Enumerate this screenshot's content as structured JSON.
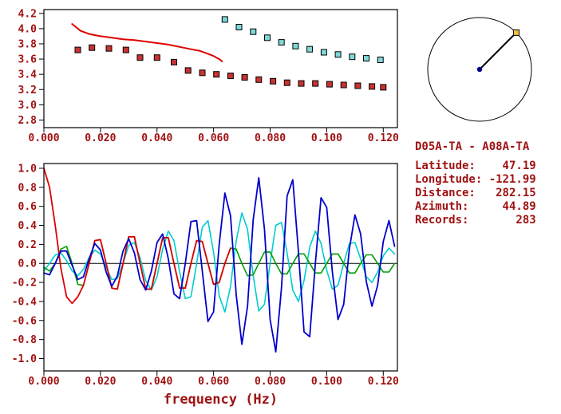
{
  "colors": {
    "text": "#a01212",
    "frame": "#000000",
    "dial_line": "#000000",
    "dial_center_dot": "#00008b",
    "dial_marker_fill": "#f0c040",
    "dial_marker_stroke": "#000000"
  },
  "panel": {
    "station_pair": "D05A-TA - A08A-TA",
    "fields": [
      {
        "label": "Latitude:",
        "value": "47.19"
      },
      {
        "label": "Longitude:",
        "value": "-121.99"
      },
      {
        "label": "Distance:",
        "value": "282.15"
      },
      {
        "label": "Azimuth:",
        "value": "44.89"
      },
      {
        "label": "Records:",
        "value": "283"
      }
    ]
  },
  "azimuth_dial": {
    "azimuth_deg": 44.89
  },
  "chart_data": [
    {
      "id": "dispersion",
      "type": "scatter",
      "title": "",
      "xlabel": "",
      "ylabel": "",
      "xlim": [
        0,
        0.125
      ],
      "ylim": [
        2.7,
        4.25
      ],
      "grid": false,
      "xticks": {
        "values": [
          0,
          0.02,
          0.04,
          0.06,
          0.08,
          0.1,
          0.12
        ],
        "labels": [
          "0.000",
          "0.020",
          "0.040",
          "0.060",
          "0.080",
          "0.100",
          "0.120"
        ]
      },
      "yticks": {
        "values": [
          2.8,
          3.0,
          3.2,
          3.4,
          3.6,
          3.8,
          4.0,
          4.2
        ],
        "labels": [
          "2.8",
          "3.0",
          "3.2",
          "3.4",
          "3.6",
          "3.8",
          "4.0",
          "4.2"
        ]
      },
      "series": [
        {
          "name": "red-squares",
          "kind": "scatter",
          "marker": "square",
          "color": "#c83232",
          "points": [
            [
              0.012,
              3.72
            ],
            [
              0.017,
              3.75
            ],
            [
              0.023,
              3.74
            ],
            [
              0.029,
              3.72
            ],
            [
              0.034,
              3.62
            ],
            [
              0.04,
              3.62
            ],
            [
              0.046,
              3.56
            ],
            [
              0.051,
              3.45
            ],
            [
              0.056,
              3.42
            ],
            [
              0.061,
              3.4
            ],
            [
              0.066,
              3.38
            ],
            [
              0.071,
              3.36
            ],
            [
              0.076,
              3.33
            ],
            [
              0.081,
              3.31
            ],
            [
              0.086,
              3.29
            ],
            [
              0.091,
              3.28
            ],
            [
              0.096,
              3.28
            ],
            [
              0.101,
              3.27
            ],
            [
              0.106,
              3.26
            ],
            [
              0.111,
              3.25
            ],
            [
              0.116,
              3.24
            ],
            [
              0.12,
              3.23
            ]
          ]
        },
        {
          "name": "cyan-squares",
          "kind": "scatter",
          "marker": "square",
          "color": "#7fd8d8",
          "points": [
            [
              0.064,
              4.12
            ],
            [
              0.069,
              4.02
            ],
            [
              0.074,
              3.96
            ],
            [
              0.079,
              3.88
            ],
            [
              0.084,
              3.82
            ],
            [
              0.089,
              3.77
            ],
            [
              0.094,
              3.73
            ],
            [
              0.099,
              3.69
            ],
            [
              0.104,
              3.66
            ],
            [
              0.109,
              3.63
            ],
            [
              0.114,
              3.61
            ],
            [
              0.119,
              3.59
            ]
          ]
        },
        {
          "name": "red-curve",
          "kind": "line",
          "color": "#e00000",
          "width": 2,
          "points": [
            [
              0.01,
              4.06
            ],
            [
              0.013,
              3.97
            ],
            [
              0.016,
              3.93
            ],
            [
              0.02,
              3.9
            ],
            [
              0.024,
              3.88
            ],
            [
              0.028,
              3.86
            ],
            [
              0.032,
              3.85
            ],
            [
              0.036,
              3.83
            ],
            [
              0.04,
              3.81
            ],
            [
              0.044,
              3.79
            ],
            [
              0.048,
              3.76
            ],
            [
              0.052,
              3.73
            ],
            [
              0.055,
              3.71
            ],
            [
              0.058,
              3.67
            ],
            [
              0.06,
              3.64
            ],
            [
              0.062,
              3.6
            ],
            [
              0.063,
              3.57
            ]
          ]
        }
      ]
    },
    {
      "id": "waveforms",
      "type": "line",
      "title": "",
      "xlabel": "frequency (Hz)",
      "ylabel": "",
      "xlim": [
        0,
        0.125
      ],
      "ylim": [
        -1.13,
        1.05
      ],
      "grid": false,
      "zero_line": true,
      "xticks": {
        "values": [
          0,
          0.02,
          0.04,
          0.06,
          0.08,
          0.1,
          0.12
        ],
        "labels": [
          "0.000",
          "0.020",
          "0.040",
          "0.060",
          "0.080",
          "0.100",
          "0.120"
        ]
      },
      "yticks": {
        "values": [
          1.0,
          0.8,
          0.6,
          0.4,
          0.2,
          0.0,
          -0.2,
          -0.4,
          -0.6,
          -0.8,
          -1.0
        ],
        "labels": [
          "1.0",
          "0.8",
          "0.6",
          "0.4",
          "0.2",
          "0.0",
          "-0.2",
          "-0.4",
          "-0.6",
          "-0.8",
          "-1.0"
        ]
      },
      "series": [
        {
          "name": "cyan-wave",
          "kind": "sampled",
          "color": "#00cdcd",
          "width": 1.6,
          "x0": 0,
          "dx": 0.002,
          "values": [
            -0.08,
            0.0,
            0.09,
            0.11,
            0.03,
            -0.08,
            -0.13,
            -0.06,
            0.06,
            0.14,
            0.1,
            -0.04,
            -0.17,
            -0.16,
            0.0,
            0.19,
            0.22,
            0.06,
            -0.18,
            -0.28,
            -0.14,
            0.15,
            0.34,
            0.24,
            -0.09,
            -0.37,
            -0.35,
            0.0,
            0.38,
            0.45,
            0.12,
            -0.34,
            -0.51,
            -0.24,
            0.24,
            0.53,
            0.36,
            -0.13,
            -0.5,
            -0.43,
            0.0,
            0.4,
            0.43,
            0.11,
            -0.28,
            -0.4,
            -0.18,
            0.17,
            0.34,
            0.21,
            -0.07,
            -0.27,
            -0.23,
            0.0,
            0.21,
            0.22,
            0.05,
            -0.14,
            -0.2,
            -0.09,
            0.08,
            0.16,
            0.1
          ]
        },
        {
          "name": "green-wave",
          "kind": "sampled",
          "color": "#00a000",
          "width": 1.6,
          "x0": 0,
          "dx": 0.002,
          "values": [
            -0.04,
            -0.08,
            0.0,
            0.15,
            0.18,
            0.0,
            -0.22,
            -0.23,
            0.0,
            0.24,
            0.25,
            0.0,
            -0.26,
            -0.27,
            0.0,
            0.28,
            0.28,
            0.0,
            -0.27,
            -0.27,
            0.0,
            0.27,
            0.27,
            0.0,
            -0.26,
            -0.26,
            0.0,
            0.24,
            0.23,
            0.0,
            -0.22,
            -0.2,
            0.0,
            0.16,
            0.15,
            0.0,
            -0.13,
            -0.12,
            0.0,
            0.12,
            0.12,
            0.0,
            -0.11,
            -0.11,
            0.0,
            0.1,
            0.1,
            0.0,
            -0.1,
            -0.1,
            0.0,
            0.1,
            0.1,
            0.0,
            -0.1,
            -0.1,
            0.0,
            0.09,
            0.09,
            0.0,
            -0.09,
            -0.09,
            0.0
          ]
        },
        {
          "name": "red-wave",
          "kind": "sampled",
          "color": "#dd0000",
          "width": 1.8,
          "x0": 0,
          "dx": 0.002,
          "values": [
            1.0,
            0.8,
            0.4,
            -0.05,
            -0.35,
            -0.42,
            -0.35,
            -0.23,
            0.0,
            0.24,
            0.25,
            0.0,
            -0.26,
            -0.27,
            0.0,
            0.28,
            0.28,
            0.0,
            -0.27,
            -0.27,
            0.0,
            0.27,
            0.27,
            0.0,
            -0.26,
            -0.26,
            0.0,
            0.24,
            0.23,
            0.0,
            -0.22,
            -0.2,
            0.0,
            0.16
          ]
        },
        {
          "name": "blue-wave",
          "kind": "sampled",
          "color": "#0000cd",
          "width": 1.8,
          "x0": 0,
          "dx": 0.002,
          "values": [
            -0.1,
            -0.12,
            0.0,
            0.13,
            0.13,
            -0.02,
            -0.17,
            -0.14,
            0.05,
            0.21,
            0.14,
            -0.09,
            -0.24,
            -0.13,
            0.13,
            0.26,
            0.11,
            -0.17,
            -0.28,
            -0.08,
            0.22,
            0.31,
            0.05,
            -0.32,
            -0.37,
            0.0,
            0.44,
            0.45,
            -0.08,
            -0.61,
            -0.51,
            0.2,
            0.74,
            0.5,
            -0.33,
            -0.85,
            -0.45,
            0.46,
            0.9,
            0.36,
            -0.59,
            -0.93,
            -0.26,
            0.71,
            0.88,
            0.12,
            -0.72,
            -0.77,
            0.0,
            0.69,
            0.59,
            -0.09,
            -0.59,
            -0.43,
            0.15,
            0.51,
            0.31,
            -0.19,
            -0.45,
            -0.23,
            0.23,
            0.45,
            0.18
          ]
        }
      ]
    }
  ]
}
